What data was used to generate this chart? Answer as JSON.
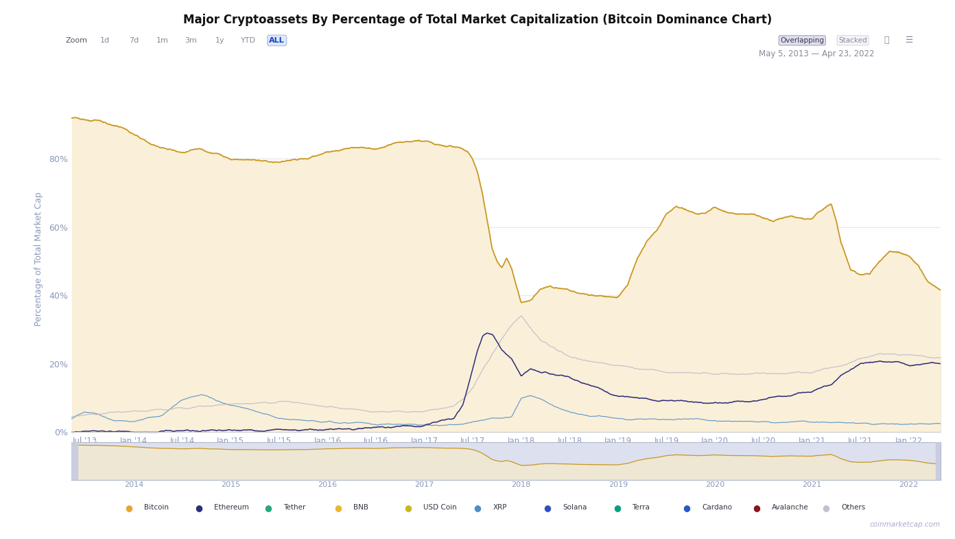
{
  "title": "Major Cryptoassets By Percentage of Total Market Capitalization (Bitcoin Dominance Chart)",
  "ylabel": "Percentage of Total Market Cap",
  "date_range": "May 5, 2013 — Apr 23, 2022",
  "zoom_labels": [
    "Zoom",
    "1d",
    "7d",
    "1m",
    "3m",
    "1y",
    "YTD",
    "ALL"
  ],
  "background_color": "#ffffff",
  "legend_items": [
    {
      "label": "Bitcoin",
      "color": "#e8a530"
    },
    {
      "label": "Ethereum",
      "color": "#2d2d7a"
    },
    {
      "label": "Tether",
      "color": "#25a87e"
    },
    {
      "label": "BNB",
      "color": "#e8b830"
    },
    {
      "label": "USD Coin",
      "color": "#c8b820"
    },
    {
      "label": "XRP",
      "color": "#4a8ec8"
    },
    {
      "label": "Solana",
      "color": "#3050c0"
    },
    {
      "label": "Terra",
      "color": "#00a080"
    },
    {
      "label": "Cardano",
      "color": "#2858c8"
    },
    {
      "label": "Avalanche",
      "color": "#8a1520"
    },
    {
      "label": "Others",
      "color": "#c0c0d0"
    }
  ],
  "watermark": "coinmarketcap.com",
  "btc_fill_color": "#faefd8",
  "btc_line_color": "#c89820",
  "eth_line_color": "#2d2d7a",
  "eth_fill_color": "#c8c8d8",
  "others_fill_color": "#d0d0d8",
  "others_line_color": "#c0c0c8",
  "xrp_fill_color": "#b8d8f0",
  "xrp_line_color": "#4a8ec8",
  "xlim_start": 2013.36,
  "xlim_end": 2022.33
}
